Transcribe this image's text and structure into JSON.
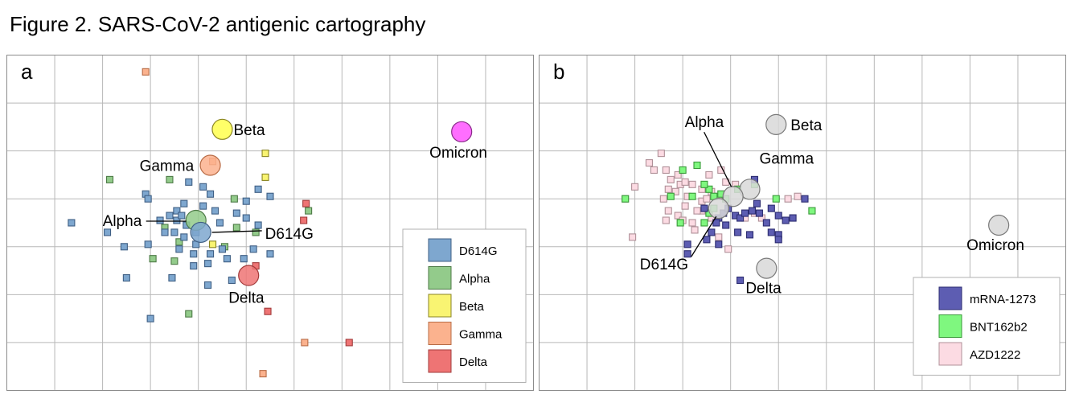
{
  "figure": {
    "title": "Figure 2. SARS-CoV-2 antigenic cartography"
  },
  "chart_data": [
    {
      "type": "scatter",
      "panel_label": "a",
      "xlim": [
        0,
        11
      ],
      "ylim": [
        0,
        7
      ],
      "grid": true,
      "legend_position": "bottom-right",
      "legend": [
        {
          "name": "D614G",
          "fill": "#7ea7cf",
          "stroke": "#3f5f84"
        },
        {
          "name": "Alpha",
          "fill": "#93cb8b",
          "stroke": "#4d7a46"
        },
        {
          "name": "Beta",
          "fill": "#f9f472",
          "stroke": "#8a8524"
        },
        {
          "name": "Gamma",
          "fill": "#fbb28e",
          "stroke": "#b86c46"
        },
        {
          "name": "Delta",
          "fill": "#ee7474",
          "stroke": "#a23b3b"
        }
      ],
      "antigens": [
        {
          "name": "Beta",
          "x": 4.5,
          "y": 5.45,
          "fill": "#ffff4d",
          "stroke": "#8a8524",
          "label_dx": 14,
          "label_dy": 7
        },
        {
          "name": "Gamma",
          "x": 4.25,
          "y": 4.7,
          "fill": "#fbb28e",
          "stroke": "#b86c46",
          "label_dx": -88,
          "label_dy": 7
        },
        {
          "name": "Omicron",
          "x": 9.5,
          "y": 5.4,
          "fill": "#ff55ff",
          "stroke": "#8a2b8a",
          "label_dx": -40,
          "label_dy": 32
        },
        {
          "name": "Alpha",
          "x": 3.95,
          "y": 3.55,
          "fill": "#93cb8b",
          "stroke": "#4d7a46",
          "label_dx": -116,
          "label_dy": 7,
          "leader": true
        },
        {
          "name": "D614G",
          "x": 4.05,
          "y": 3.3,
          "fill": "#7ea7cf",
          "stroke": "#3f5f84",
          "label_dx": 80,
          "label_dy": 8,
          "leader": true
        },
        {
          "name": "Delta",
          "x": 5.05,
          "y": 2.4,
          "fill": "#ee7474",
          "stroke": "#a23b3b",
          "label_dx": -25,
          "label_dy": 34
        }
      ],
      "sera": [
        {
          "group": "Gamma",
          "points": [
            [
              2.9,
              6.65
            ],
            [
              4.3,
              4.78
            ],
            [
              6.22,
              1.0
            ],
            [
              5.35,
              0.35
            ]
          ]
        },
        {
          "group": "Beta",
          "points": [
            [
              5.4,
              4.95
            ],
            [
              5.4,
              4.45
            ],
            [
              4.3,
              3.05
            ]
          ]
        },
        {
          "group": "Delta",
          "points": [
            [
              6.25,
              3.9
            ],
            [
              6.2,
              3.55
            ],
            [
              5.2,
              2.6
            ],
            [
              5.45,
              1.65
            ],
            [
              7.15,
              1.0
            ]
          ]
        },
        {
          "group": "Alpha",
          "points": [
            [
              2.15,
              4.4
            ],
            [
              3.4,
              4.4
            ],
            [
              4.75,
              4.0
            ],
            [
              6.3,
              3.75
            ],
            [
              4.8,
              3.4
            ],
            [
              5.2,
              3.3
            ],
            [
              3.3,
              3.4
            ],
            [
              3.6,
              3.1
            ],
            [
              4.55,
              3.0
            ],
            [
              3.05,
              2.75
            ],
            [
              3.5,
              2.7
            ],
            [
              3.8,
              1.6
            ]
          ]
        },
        {
          "group": "D614G",
          "points": [
            [
              1.35,
              3.5
            ],
            [
              2.1,
              3.3
            ],
            [
              2.45,
              3.0
            ],
            [
              2.95,
              3.05
            ],
            [
              3.2,
              3.55
            ],
            [
              3.4,
              3.65
            ],
            [
              3.55,
              3.75
            ],
            [
              3.7,
              3.9
            ],
            [
              3.75,
              3.45
            ],
            [
              3.95,
              3.3
            ],
            [
              4.1,
              3.85
            ],
            [
              4.25,
              4.1
            ],
            [
              4.35,
              3.75
            ],
            [
              4.45,
              3.5
            ],
            [
              4.8,
              3.7
            ],
            [
              5.0,
              3.6
            ],
            [
              5.25,
              3.45
            ],
            [
              5.5,
              4.05
            ],
            [
              5.25,
              4.2
            ],
            [
              5.0,
              3.95
            ],
            [
              4.1,
              4.25
            ],
            [
              3.8,
              4.35
            ],
            [
              2.9,
              4.1
            ],
            [
              2.95,
              4.0
            ],
            [
              3.55,
              3.55
            ],
            [
              3.6,
              2.95
            ],
            [
              3.9,
              2.85
            ],
            [
              3.95,
              3.05
            ],
            [
              4.25,
              2.85
            ],
            [
              4.5,
              2.95
            ],
            [
              4.6,
              2.75
            ],
            [
              4.2,
              2.65
            ],
            [
              3.9,
              2.6
            ],
            [
              5.15,
              2.95
            ],
            [
              5.5,
              2.85
            ],
            [
              4.95,
              2.75
            ],
            [
              2.5,
              2.35
            ],
            [
              3.45,
              2.35
            ],
            [
              4.2,
              2.2
            ],
            [
              3.0,
              1.5
            ],
            [
              3.3,
              3.3
            ],
            [
              3.5,
              3.3
            ],
            [
              4.7,
              2.3
            ],
            [
              3.7,
              3.2
            ],
            [
              3.65,
              3.65
            ]
          ]
        }
      ]
    },
    {
      "type": "scatter",
      "panel_label": "b",
      "xlim": [
        0,
        11
      ],
      "ylim": [
        0,
        7
      ],
      "grid": true,
      "legend_position": "bottom-right",
      "legend": [
        {
          "name": "mRNA-1273",
          "fill": "#5d5db2",
          "stroke": "#2c2c70"
        },
        {
          "name": "BNT162b2",
          "fill": "#7ff77f",
          "stroke": "#3a9a3a"
        },
        {
          "name": "AZD1222",
          "fill": "#fcdbe3",
          "stroke": "#b09098"
        }
      ],
      "antigens": [
        {
          "name": "Beta",
          "x": 4.95,
          "y": 5.55,
          "fill": "#d8d8d8",
          "stroke": "#7a7a7a",
          "label_dx": 18,
          "label_dy": 7
        },
        {
          "name": "Gamma",
          "x": 4.4,
          "y": 4.2,
          "fill": "#d8d8d8",
          "stroke": "#7a7a7a",
          "label_dx": 12,
          "label_dy": -32
        },
        {
          "name": "Alpha",
          "x": 4.05,
          "y": 4.05,
          "fill": "#d8d8d8",
          "stroke": "#7a7a7a",
          "label_dx": -60,
          "label_dy": -86,
          "leader": true
        },
        {
          "name": "D614G",
          "x": 3.75,
          "y": 3.8,
          "fill": "#d8d8d8",
          "stroke": "#7a7a7a",
          "label_dx": -98,
          "label_dy": 76,
          "leader": true
        },
        {
          "name": "Delta",
          "x": 4.75,
          "y": 2.55,
          "fill": "#d8d8d8",
          "stroke": "#7a7a7a",
          "label_dx": -26,
          "label_dy": 31
        },
        {
          "name": "Omicron",
          "x": 9.6,
          "y": 3.45,
          "fill": "#d8d8d8",
          "stroke": "#7a7a7a",
          "label_dx": -40,
          "label_dy": 31
        }
      ],
      "sera": [
        {
          "group": "AZD1222",
          "points": [
            [
              2.55,
              4.95
            ],
            [
              2.3,
              4.75
            ],
            [
              2.4,
              4.6
            ],
            [
              2.65,
              4.6
            ],
            [
              2.75,
              4.4
            ],
            [
              2.9,
              4.5
            ],
            [
              2.95,
              4.3
            ],
            [
              2.7,
              4.2
            ],
            [
              2.6,
              4.0
            ],
            [
              2.85,
              4.15
            ],
            [
              3.05,
              4.35
            ],
            [
              3.2,
              4.3
            ],
            [
              3.4,
              4.2
            ],
            [
              3.55,
              4.5
            ],
            [
              3.6,
              4.15
            ],
            [
              3.4,
              3.95
            ],
            [
              3.05,
              3.85
            ],
            [
              2.9,
              3.65
            ],
            [
              2.7,
              3.75
            ],
            [
              2.65,
              3.55
            ],
            [
              3.0,
              3.55
            ],
            [
              3.4,
              3.75
            ],
            [
              3.8,
              4.6
            ],
            [
              3.9,
              4.35
            ],
            [
              4.1,
              4.3
            ],
            [
              4.3,
              3.6
            ],
            [
              4.5,
              3.7
            ],
            [
              4.65,
              3.6
            ],
            [
              5.2,
              4.0
            ],
            [
              5.4,
              4.05
            ],
            [
              2.0,
              4.25
            ],
            [
              1.8,
              4.0
            ],
            [
              1.95,
              3.2
            ],
            [
              3.75,
              4.05
            ],
            [
              3.2,
              3.5
            ],
            [
              3.6,
              3.6
            ],
            [
              3.95,
              2.95
            ],
            [
              3.75,
              3.2
            ],
            [
              3.25,
              3.35
            ],
            [
              3.3,
              3.75
            ],
            [
              3.1,
              4.05
            ],
            [
              3.5,
              4.0
            ]
          ]
        },
        {
          "group": "BNT162b2",
          "points": [
            [
              1.8,
              4.0
            ],
            [
              2.75,
              4.05
            ],
            [
              3.0,
              4.6
            ],
            [
              3.3,
              4.7
            ],
            [
              3.55,
              4.2
            ],
            [
              3.65,
              4.05
            ],
            [
              3.2,
              4.05
            ],
            [
              3.45,
              4.3
            ],
            [
              3.9,
              4.0
            ],
            [
              4.15,
              4.2
            ],
            [
              4.5,
              4.3
            ],
            [
              3.55,
              3.7
            ],
            [
              3.65,
              3.8
            ],
            [
              3.8,
              4.1
            ],
            [
              4.95,
              4.0
            ],
            [
              5.7,
              3.75
            ],
            [
              2.95,
              3.5
            ],
            [
              3.45,
              3.5
            ]
          ]
        },
        {
          "group": "mRNA-1273",
          "points": [
            [
              4.5,
              4.4
            ],
            [
              5.55,
              4.0
            ],
            [
              3.45,
              3.8
            ],
            [
              3.75,
              3.6
            ],
            [
              3.85,
              3.7
            ],
            [
              3.95,
              3.8
            ],
            [
              4.1,
              3.65
            ],
            [
              3.7,
              3.5
            ],
            [
              3.9,
              3.45
            ],
            [
              4.45,
              3.75
            ],
            [
              4.6,
              3.7
            ],
            [
              4.75,
              3.5
            ],
            [
              4.85,
              3.8
            ],
            [
              5.0,
              3.65
            ],
            [
              5.15,
              3.55
            ],
            [
              5.3,
              3.6
            ],
            [
              5.0,
              3.25
            ],
            [
              4.85,
              3.3
            ],
            [
              5.0,
              3.15
            ],
            [
              4.4,
              3.25
            ],
            [
              4.15,
              3.3
            ],
            [
              3.6,
              3.3
            ],
            [
              3.5,
              3.15
            ],
            [
              3.75,
              3.05
            ],
            [
              3.1,
              3.05
            ],
            [
              3.1,
              2.85
            ],
            [
              4.2,
              3.6
            ],
            [
              4.3,
              3.7
            ],
            [
              4.55,
              3.9
            ],
            [
              4.2,
              2.3
            ]
          ]
        }
      ]
    }
  ]
}
